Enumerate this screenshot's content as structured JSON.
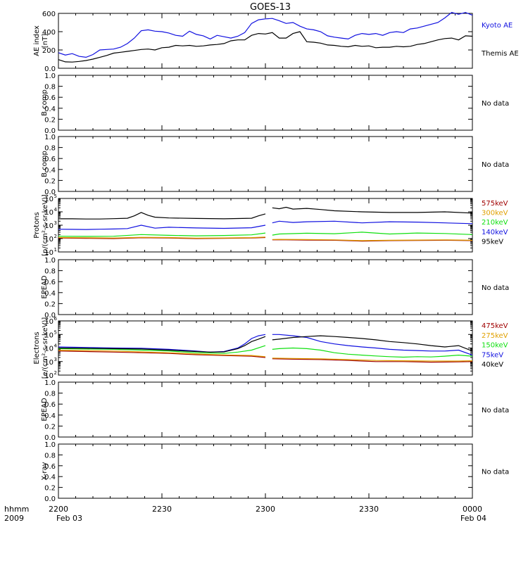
{
  "title": "GOES-13",
  "bottom_labels": {
    "hhmm": "hhmm",
    "year": "2009",
    "date_start": "Feb 03",
    "date_end": "Feb 04"
  },
  "chart_data": [
    {
      "id": "ae",
      "type": "line",
      "ylabel": [
        "AE index",
        "[nT]"
      ],
      "ylim": [
        0,
        600
      ],
      "yscale": "linear",
      "yticks": [
        0,
        200,
        400,
        600
      ],
      "series": [
        {
          "name": "Kyoto AE",
          "color": "#1010e0",
          "x": [
            0,
            1,
            2,
            3,
            4,
            5,
            6,
            7,
            8,
            9,
            10,
            11,
            12,
            13,
            14,
            15,
            16,
            17,
            18,
            19,
            20,
            21,
            22,
            23,
            24,
            25,
            26,
            27,
            28,
            29,
            30,
            31,
            32,
            33,
            34,
            35,
            36,
            37,
            38,
            39,
            40,
            41,
            42,
            43,
            44,
            45,
            46,
            47,
            48,
            49,
            50,
            51,
            52,
            53,
            54,
            55,
            56,
            57,
            58,
            59,
            60
          ],
          "y": [
            170,
            145,
            160,
            130,
            120,
            150,
            200,
            205,
            210,
            230,
            270,
            330,
            410,
            420,
            405,
            400,
            385,
            360,
            350,
            405,
            370,
            355,
            320,
            360,
            345,
            330,
            350,
            390,
            490,
            530,
            540,
            545,
            520,
            490,
            500,
            460,
            430,
            420,
            400,
            355,
            340,
            330,
            320,
            360,
            380,
            370,
            380,
            360,
            390,
            400,
            390,
            430,
            440,
            460,
            480,
            500,
            550,
            610,
            590,
            610,
            580
          ]
        },
        {
          "name": "Themis AE",
          "color": "#000000",
          "x": [
            0,
            1,
            2,
            3,
            4,
            5,
            6,
            7,
            8,
            9,
            10,
            11,
            12,
            13,
            14,
            15,
            16,
            17,
            18,
            19,
            20,
            21,
            22,
            23,
            24,
            25,
            26,
            27,
            28,
            29,
            30,
            31,
            32,
            33,
            34,
            35,
            36,
            37,
            38,
            39,
            40,
            41,
            42,
            43,
            44,
            45,
            46,
            47,
            48,
            49,
            50,
            51,
            52,
            53,
            54,
            55,
            56,
            57,
            58,
            59,
            60
          ],
          "y": [
            95,
            70,
            68,
            75,
            85,
            100,
            120,
            140,
            165,
            175,
            185,
            195,
            205,
            210,
            200,
            225,
            230,
            250,
            245,
            250,
            240,
            245,
            255,
            260,
            270,
            300,
            310,
            310,
            360,
            380,
            375,
            390,
            330,
            330,
            380,
            400,
            290,
            285,
            275,
            255,
            250,
            240,
            235,
            250,
            240,
            245,
            225,
            230,
            230,
            240,
            235,
            240,
            260,
            270,
            290,
            310,
            325,
            330,
            310,
            355,
            350
          ]
        }
      ]
    },
    {
      "id": "b1",
      "type": "line",
      "ylabel": [
        "B comp"
      ],
      "ylim": [
        0,
        1
      ],
      "yscale": "linear",
      "yticks": [
        0,
        0.2,
        0.4,
        0.6,
        0.8,
        1.0
      ],
      "nodata": "No data",
      "series": []
    },
    {
      "id": "b2",
      "type": "line",
      "ylabel": [
        "B comp"
      ],
      "ylim": [
        0,
        1
      ],
      "yscale": "linear",
      "yticks": [
        0,
        0.2,
        0.4,
        0.6,
        0.8,
        1.0
      ],
      "nodata": "No data",
      "series": []
    },
    {
      "id": "protons",
      "type": "line",
      "ylabel": [
        "Protons",
        "[p/(cm²-s-sr-keV)]"
      ],
      "ylim": [
        10,
        100000
      ],
      "yscale": "log",
      "yticks": [
        10,
        100,
        1000,
        10000,
        100000
      ],
      "gap": [
        30.5,
        31.5
      ],
      "series": [
        {
          "name": "575keV",
          "color": "#a00000",
          "x": [
            0,
            4,
            8,
            12,
            16,
            20,
            24,
            28,
            30,
            31,
            32,
            36,
            40,
            44,
            48,
            52,
            56,
            60
          ],
          "y": [
            110,
            105,
            100,
            115,
            110,
            100,
            105,
            110,
            120,
            80,
            82,
            78,
            75,
            65,
            70,
            72,
            75,
            70
          ]
        },
        {
          "name": "300keV",
          "color": "#e0a000",
          "x": [
            0,
            4,
            8,
            12,
            16,
            20,
            24,
            28,
            30,
            31,
            32,
            36,
            40,
            44,
            48,
            52,
            56,
            60
          ],
          "y": [
            120,
            115,
            110,
            125,
            120,
            108,
            112,
            118,
            130,
            85,
            88,
            84,
            80,
            70,
            75,
            78,
            80,
            75
          ]
        },
        {
          "name": "210keV",
          "color": "#10e010",
          "x": [
            0,
            4,
            8,
            12,
            16,
            20,
            24,
            28,
            30,
            31,
            32,
            36,
            40,
            44,
            48,
            52,
            56,
            60
          ],
          "y": [
            150,
            145,
            150,
            200,
            175,
            160,
            170,
            190,
            260,
            180,
            220,
            250,
            230,
            300,
            220,
            260,
            240,
            200
          ]
        },
        {
          "name": "140keV",
          "color": "#1010e0",
          "x": [
            0,
            2,
            4,
            6,
            8,
            10,
            12,
            14,
            16,
            20,
            24,
            28,
            30,
            31,
            32,
            34,
            36,
            40,
            44,
            48,
            52,
            56,
            60
          ],
          "y": [
            500,
            490,
            480,
            500,
            520,
            560,
            1000,
            600,
            700,
            620,
            580,
            650,
            1000,
            1500,
            2000,
            1600,
            1800,
            2000,
            1500,
            1800,
            1700,
            1500,
            1300
          ]
        },
        {
          "name": "95keV",
          "color": "#000000",
          "x": [
            0,
            2,
            4,
            6,
            8,
            10,
            11,
            12,
            13,
            14,
            16,
            20,
            24,
            28,
            29,
            30,
            31,
            32,
            33,
            34,
            36,
            38,
            40,
            44,
            48,
            52,
            56,
            60
          ],
          "y": [
            3000,
            3000,
            2900,
            2900,
            3100,
            3300,
            5000,
            9000,
            5500,
            4000,
            3500,
            3200,
            3000,
            3300,
            5000,
            7000,
            20000,
            17000,
            22000,
            16000,
            18000,
            15000,
            12000,
            10000,
            9000,
            9000,
            10000,
            8000
          ]
        }
      ]
    },
    {
      "id": "epead1",
      "type": "line",
      "ylabel": [
        "EPEAD"
      ],
      "ylim": [
        0,
        1
      ],
      "yscale": "linear",
      "yticks": [
        0,
        0.2,
        0.4,
        0.6,
        0.8,
        1.0
      ],
      "nodata": "No data",
      "series": []
    },
    {
      "id": "electrons",
      "type": "line",
      "ylabel": [
        "Electrons",
        "[e/(cm²-s-sr-keV)]"
      ],
      "ylim": [
        100,
        1000000
      ],
      "yscale": "log",
      "yticks": [
        100,
        1000,
        10000,
        100000,
        1000000
      ],
      "gap": [
        30.5,
        31.5
      ],
      "series": [
        {
          "name": "475keV",
          "color": "#a00000",
          "x": [
            0,
            4,
            8,
            12,
            16,
            20,
            24,
            28,
            30,
            31,
            34,
            38,
            42,
            46,
            50,
            54,
            58,
            60
          ],
          "y": [
            6000,
            5500,
            5000,
            4500,
            4000,
            3200,
            2800,
            2500,
            2000,
            1600,
            1500,
            1400,
            1200,
            1000,
            1000,
            900,
            950,
            1000
          ]
        },
        {
          "name": "275keV",
          "color": "#e0a000",
          "x": [
            0,
            4,
            8,
            12,
            16,
            20,
            24,
            28,
            30,
            31,
            34,
            38,
            42,
            46,
            50,
            54,
            58,
            60
          ],
          "y": [
            7000,
            6500,
            6000,
            5200,
            4500,
            3600,
            3100,
            2800,
            2300,
            1800,
            1700,
            1600,
            1400,
            1200,
            1150,
            1100,
            1100,
            1150
          ]
        },
        {
          "name": "150keV",
          "color": "#10e010",
          "x": [
            0,
            4,
            8,
            12,
            16,
            20,
            24,
            26,
            28,
            30,
            31,
            32,
            34,
            36,
            38,
            40,
            42,
            44,
            46,
            48,
            50,
            52,
            54,
            56,
            58,
            60
          ],
          "y": [
            9000,
            8500,
            8000,
            7000,
            6000,
            4500,
            4000,
            5000,
            7000,
            15000,
            8000,
            9000,
            10000,
            9000,
            7000,
            4500,
            3500,
            3000,
            2600,
            2300,
            2100,
            2300,
            2200,
            2500,
            3000,
            2500
          ]
        },
        {
          "name": "75keV",
          "color": "#1010e0",
          "x": [
            0,
            4,
            8,
            12,
            16,
            20,
            22,
            24,
            26,
            27,
            28,
            29,
            30,
            31,
            32,
            34,
            36,
            38,
            40,
            42,
            44,
            46,
            48,
            50,
            52,
            54,
            56,
            58,
            60
          ],
          "y": [
            12000,
            11000,
            10000,
            9500,
            8000,
            6000,
            5000,
            5500,
            10000,
            20000,
            50000,
            80000,
            100000,
            100000,
            100000,
            80000,
            60000,
            30000,
            20000,
            15000,
            12000,
            10000,
            8000,
            7000,
            6500,
            6000,
            6000,
            7000,
            3000
          ]
        },
        {
          "name": "40keV",
          "color": "#000000",
          "x": [
            0,
            4,
            8,
            12,
            16,
            20,
            22,
            24,
            26,
            27,
            28,
            29,
            30,
            31,
            32,
            34,
            36,
            38,
            40,
            42,
            44,
            46,
            48,
            50,
            52,
            54,
            56,
            58,
            60
          ],
          "y": [
            10000,
            9500,
            9000,
            8500,
            7000,
            5500,
            5000,
            5200,
            9000,
            15000,
            30000,
            45000,
            70000,
            40000,
            45000,
            60000,
            70000,
            80000,
            70000,
            60000,
            50000,
            40000,
            30000,
            25000,
            20000,
            15000,
            12000,
            15000,
            6000
          ]
        }
      ]
    },
    {
      "id": "epead2",
      "type": "line",
      "ylabel": [
        "EPEAD"
      ],
      "ylim": [
        0,
        1
      ],
      "yscale": "linear",
      "yticks": [
        0,
        0.2,
        0.4,
        0.6,
        0.8,
        1.0
      ],
      "nodata": "No data",
      "series": []
    },
    {
      "id": "xray",
      "type": "line",
      "ylabel": [
        "X-ray"
      ],
      "ylim": [
        0,
        1
      ],
      "yscale": "linear",
      "yticks": [
        0,
        0.2,
        0.4,
        0.6,
        0.8,
        1.0
      ],
      "nodata": "No data",
      "series": []
    }
  ],
  "x_axis": {
    "ticks": [
      0,
      30,
      60,
      90,
      120
    ],
    "tick_labels": [
      "2200",
      "2230",
      "2300",
      "2330",
      "0000"
    ],
    "range_minutes": [
      0,
      120
    ]
  }
}
